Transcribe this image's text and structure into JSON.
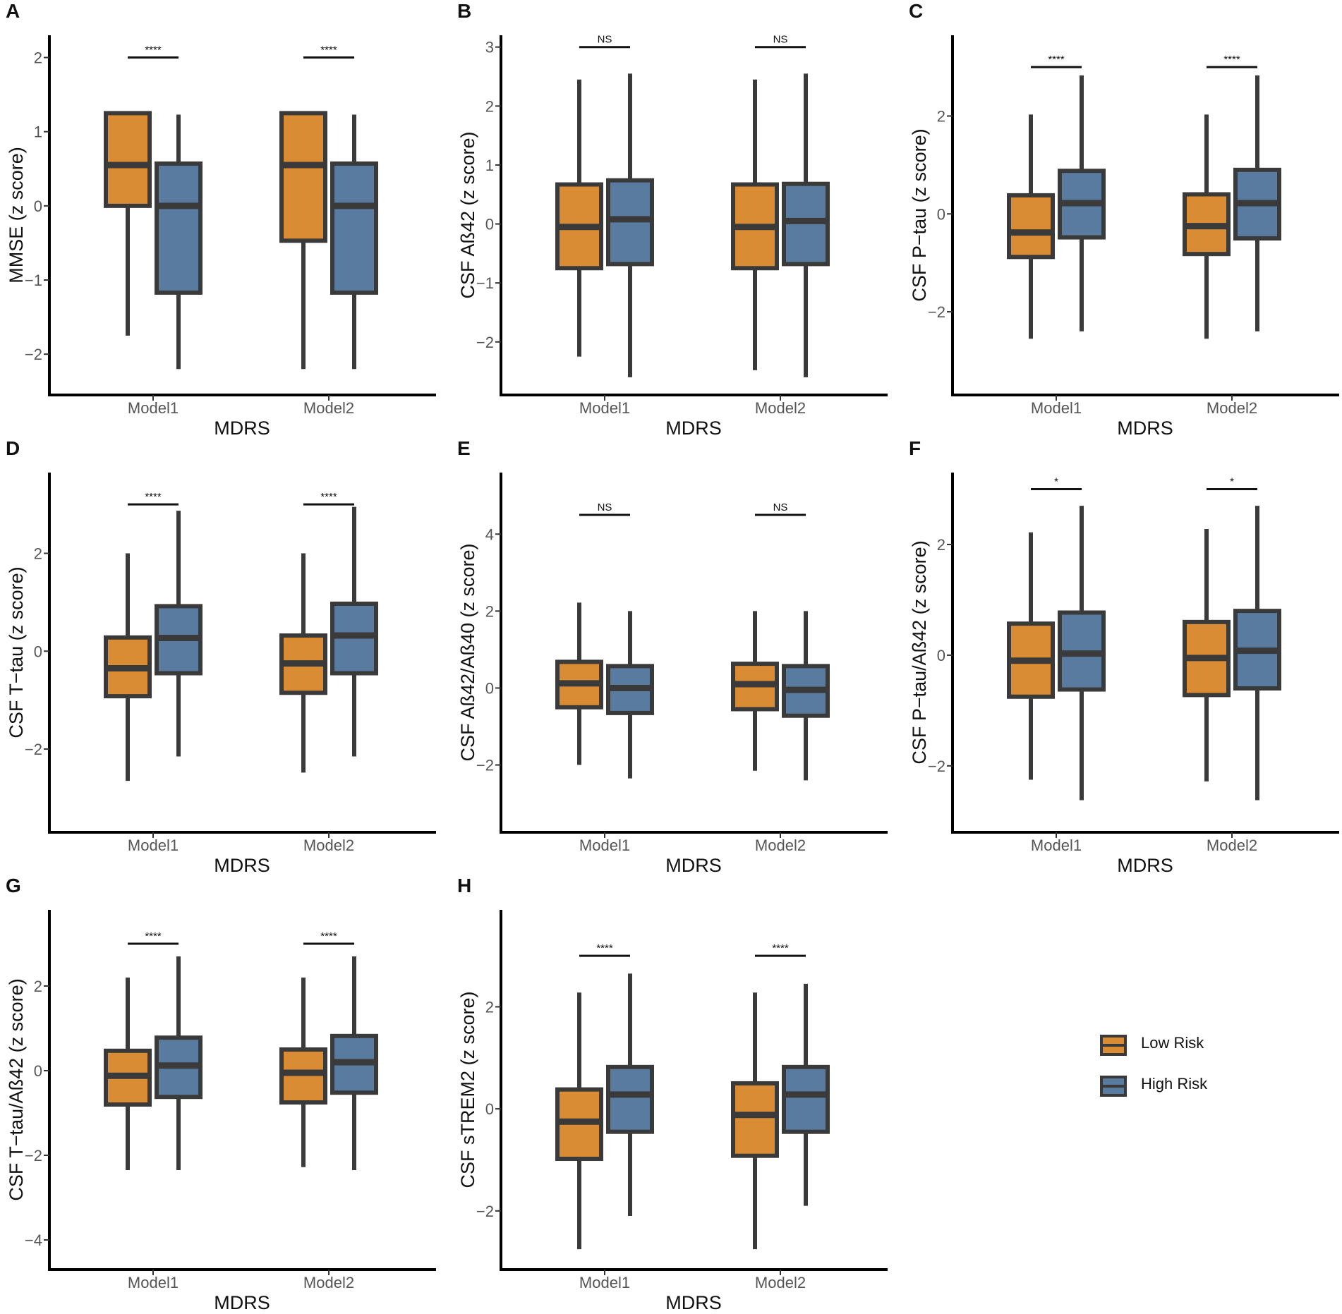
{
  "colors": {
    "low": "#D98C34",
    "high": "#5A7BA0",
    "line": "#3a3a3a"
  },
  "chart_data": [
    {
      "panel": "A",
      "type": "boxplot",
      "title": "",
      "xlabel": "MDRS",
      "ylabel": "MMSE (z score)",
      "ylim": [
        -2.55,
        2.3
      ],
      "yticks": [
        2,
        1,
        0,
        -1,
        -2
      ],
      "ytick_labels": [
        "2",
        "1",
        "0",
        "−1",
        "−2"
      ],
      "categories": [
        "Model1",
        "Model2"
      ],
      "series": [
        {
          "name": "Low Risk",
          "boxes": [
            {
              "min": -1.75,
              "q1": 0.0,
              "median": 0.55,
              "q3": 1.25,
              "max": 1.25
            },
            {
              "min": -2.2,
              "q1": -0.47,
              "median": 0.55,
              "q3": 1.25,
              "max": 1.25
            }
          ]
        },
        {
          "name": "High Risk",
          "boxes": [
            {
              "min": -2.2,
              "q1": -1.17,
              "median": 0.0,
              "q3": 0.57,
              "max": 1.23
            },
            {
              "min": -2.2,
              "q1": -1.17,
              "median": 0.0,
              "q3": 0.57,
              "max": 1.23
            }
          ]
        }
      ],
      "significance": [
        {
          "text": "****",
          "y": 2.0
        },
        {
          "text": "****",
          "y": 2.0
        }
      ]
    },
    {
      "panel": "B",
      "type": "boxplot",
      "title": "",
      "xlabel": "MDRS",
      "ylabel": "CSF Aß42 (z score)",
      "ylim": [
        -2.9,
        3.2
      ],
      "yticks": [
        3,
        2,
        1,
        0,
        -1,
        -2
      ],
      "ytick_labels": [
        "3",
        "2",
        "1",
        "0",
        "−1",
        "−2"
      ],
      "categories": [
        "Model1",
        "Model2"
      ],
      "series": [
        {
          "name": "Low Risk",
          "boxes": [
            {
              "min": -2.25,
              "q1": -0.75,
              "median": -0.05,
              "q3": 0.67,
              "max": 2.45
            },
            {
              "min": -2.48,
              "q1": -0.75,
              "median": -0.05,
              "q3": 0.67,
              "max": 2.45
            }
          ]
        },
        {
          "name": "High Risk",
          "boxes": [
            {
              "min": -2.6,
              "q1": -0.68,
              "median": 0.08,
              "q3": 0.74,
              "max": 2.55
            },
            {
              "min": -2.6,
              "q1": -0.68,
              "median": 0.05,
              "q3": 0.68,
              "max": 2.55
            }
          ]
        }
      ],
      "significance": [
        {
          "text": "NS",
          "y": 3.0
        },
        {
          "text": "NS",
          "y": 3.0
        }
      ]
    },
    {
      "panel": "C",
      "type": "boxplot",
      "title": "",
      "xlabel": "MDRS",
      "ylabel": "CSF P−tau (z score)",
      "ylim": [
        -3.7,
        3.65
      ],
      "yticks": [
        2,
        0,
        -2
      ],
      "ytick_labels": [
        "2",
        "0",
        "−2"
      ],
      "categories": [
        "Model1",
        "Model2"
      ],
      "series": [
        {
          "name": "Low Risk",
          "boxes": [
            {
              "min": -2.55,
              "q1": -0.88,
              "median": -0.38,
              "q3": 0.38,
              "max": 2.03
            },
            {
              "min": -2.55,
              "q1": -0.82,
              "median": -0.25,
              "q3": 0.4,
              "max": 2.03
            }
          ]
        },
        {
          "name": "High Risk",
          "boxes": [
            {
              "min": -2.4,
              "q1": -0.48,
              "median": 0.22,
              "q3": 0.88,
              "max": 2.83
            },
            {
              "min": -2.4,
              "q1": -0.5,
              "median": 0.22,
              "q3": 0.9,
              "max": 2.83
            }
          ]
        }
      ],
      "significance": [
        {
          "text": "****",
          "y": 3.0
        },
        {
          "text": "****",
          "y": 3.0
        }
      ]
    },
    {
      "panel": "D",
      "type": "boxplot",
      "title": "",
      "xlabel": "MDRS",
      "ylabel": "CSF T−tau (z score)",
      "ylim": [
        -3.7,
        3.65
      ],
      "yticks": [
        2,
        0,
        -2
      ],
      "ytick_labels": [
        "2",
        "0",
        "−2"
      ],
      "categories": [
        "Model1",
        "Model2"
      ],
      "series": [
        {
          "name": "Low Risk",
          "boxes": [
            {
              "min": -2.65,
              "q1": -0.92,
              "median": -0.35,
              "q3": 0.28,
              "max": 2.0
            },
            {
              "min": -2.48,
              "q1": -0.85,
              "median": -0.25,
              "q3": 0.32,
              "max": 2.0
            }
          ]
        },
        {
          "name": "High Risk",
          "boxes": [
            {
              "min": -2.15,
              "q1": -0.45,
              "median": 0.27,
              "q3": 0.92,
              "max": 2.87
            },
            {
              "min": -2.15,
              "q1": -0.45,
              "median": 0.32,
              "q3": 0.97,
              "max": 2.95
            }
          ]
        }
      ],
      "significance": [
        {
          "text": "****",
          "y": 3.0
        },
        {
          "text": "****",
          "y": 3.0
        }
      ]
    },
    {
      "panel": "E",
      "type": "boxplot",
      "title": "",
      "xlabel": "MDRS",
      "ylabel": "CSF Aß42/Aß40 (z score)",
      "ylim": [
        -3.75,
        5.6
      ],
      "yticks": [
        4,
        2,
        0,
        -2
      ],
      "ytick_labels": [
        "4",
        "2",
        "0",
        "−2"
      ],
      "categories": [
        "Model1",
        "Model2"
      ],
      "series": [
        {
          "name": "Low Risk",
          "boxes": [
            {
              "min": -2.0,
              "q1": -0.5,
              "median": 0.12,
              "q3": 0.68,
              "max": 2.22
            },
            {
              "min": -2.15,
              "q1": -0.55,
              "median": 0.1,
              "q3": 0.63,
              "max": 2.0
            }
          ]
        },
        {
          "name": "High Risk",
          "boxes": [
            {
              "min": -2.35,
              "q1": -0.65,
              "median": 0.0,
              "q3": 0.57,
              "max": 2.0
            },
            {
              "min": -2.4,
              "q1": -0.72,
              "median": -0.05,
              "q3": 0.57,
              "max": 2.0
            }
          ]
        }
      ],
      "significance": [
        {
          "text": "NS",
          "y": 4.5
        },
        {
          "text": "NS",
          "y": 4.5
        }
      ]
    },
    {
      "panel": "F",
      "type": "boxplot",
      "title": "",
      "xlabel": "MDRS",
      "ylabel": "CSF P−tau/Aß42 (z score)",
      "ylim": [
        -3.2,
        3.3
      ],
      "yticks": [
        2,
        0,
        -2
      ],
      "ytick_labels": [
        "2",
        "0",
        "−2"
      ],
      "categories": [
        "Model1",
        "Model2"
      ],
      "series": [
        {
          "name": "Low Risk",
          "boxes": [
            {
              "min": -2.25,
              "q1": -0.75,
              "median": -0.1,
              "q3": 0.57,
              "max": 2.22
            },
            {
              "min": -2.28,
              "q1": -0.72,
              "median": -0.05,
              "q3": 0.6,
              "max": 2.28
            }
          ]
        },
        {
          "name": "High Risk",
          "boxes": [
            {
              "min": -2.62,
              "q1": -0.62,
              "median": 0.03,
              "q3": 0.77,
              "max": 2.7
            },
            {
              "min": -2.62,
              "q1": -0.6,
              "median": 0.08,
              "q3": 0.8,
              "max": 2.7
            }
          ]
        }
      ],
      "significance": [
        {
          "text": "*",
          "y": 3.0
        },
        {
          "text": "*",
          "y": 3.0
        }
      ]
    },
    {
      "panel": "G",
      "type": "boxplot",
      "title": "",
      "xlabel": "MDRS",
      "ylabel": "CSF T−tau/Aß42 (z score)",
      "ylim": [
        -4.7,
        3.8
      ],
      "yticks": [
        2,
        0,
        -2,
        -4
      ],
      "ytick_labels": [
        "2",
        "0",
        "−2",
        "−4"
      ],
      "categories": [
        "Model1",
        "Model2"
      ],
      "series": [
        {
          "name": "Low Risk",
          "boxes": [
            {
              "min": -2.35,
              "q1": -0.8,
              "median": -0.12,
              "q3": 0.47,
              "max": 2.2
            },
            {
              "min": -2.28,
              "q1": -0.75,
              "median": -0.05,
              "q3": 0.5,
              "max": 2.2
            }
          ]
        },
        {
          "name": "High Risk",
          "boxes": [
            {
              "min": -2.35,
              "q1": -0.62,
              "median": 0.12,
              "q3": 0.78,
              "max": 2.7
            },
            {
              "min": -2.35,
              "q1": -0.52,
              "median": 0.2,
              "q3": 0.82,
              "max": 2.7
            }
          ]
        }
      ],
      "significance": [
        {
          "text": "****",
          "y": 3.0
        },
        {
          "text": "****",
          "y": 3.0
        }
      ]
    },
    {
      "panel": "H",
      "type": "boxplot",
      "title": "",
      "xlabel": "MDRS",
      "ylabel": "CSF sTREM2 (z score)",
      "ylim": [
        -3.15,
        3.9
      ],
      "yticks": [
        2,
        0,
        -2
      ],
      "ytick_labels": [
        "2",
        "0",
        "−2"
      ],
      "categories": [
        "Model1",
        "Model2"
      ],
      "series": [
        {
          "name": "Low Risk",
          "boxes": [
            {
              "min": -2.75,
              "q1": -0.98,
              "median": -0.25,
              "q3": 0.38,
              "max": 2.28
            },
            {
              "min": -2.75,
              "q1": -0.92,
              "median": -0.12,
              "q3": 0.5,
              "max": 2.28
            }
          ]
        },
        {
          "name": "High Risk",
          "boxes": [
            {
              "min": -2.1,
              "q1": -0.45,
              "median": 0.28,
              "q3": 0.82,
              "max": 2.65
            },
            {
              "min": -1.9,
              "q1": -0.45,
              "median": 0.28,
              "q3": 0.82,
              "max": 2.45
            }
          ]
        }
      ],
      "significance": [
        {
          "text": "****",
          "y": 3.0
        },
        {
          "text": "****",
          "y": 3.0
        }
      ]
    }
  ],
  "legend": {
    "items": [
      {
        "label": "Low Risk"
      },
      {
        "label": "High Risk"
      }
    ]
  }
}
